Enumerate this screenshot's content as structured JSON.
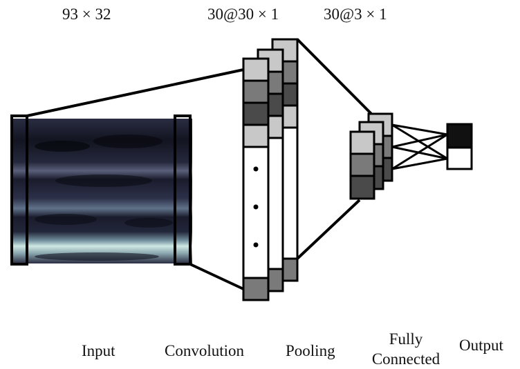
{
  "dimensions": {
    "input": "93 × 32",
    "convolution": "30@30 × 1",
    "pooling": "30@3 × 1"
  },
  "stages": {
    "input": "Input",
    "convolution": "Convolution",
    "pooling": "Pooling",
    "fully_connected_line1": "Fully",
    "fully_connected_line2": "Connected",
    "output": "Output"
  },
  "colors": {
    "cell_light": "#c8c8c8",
    "cell_mid": "#7a7a7a",
    "cell_dark": "#4a4a4a",
    "cell_black": "#111111",
    "spectrogram_dark": "#141624",
    "spectrogram_band": "#cfe8e4",
    "stroke": "#000000"
  }
}
